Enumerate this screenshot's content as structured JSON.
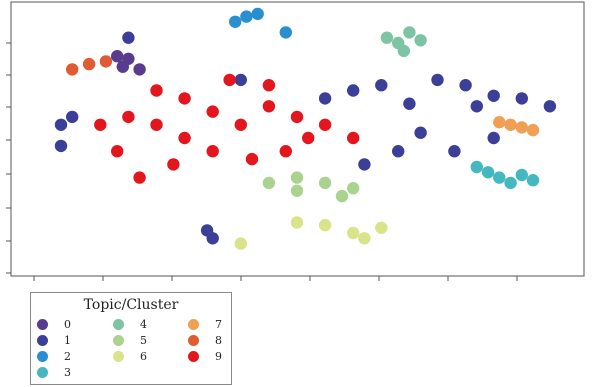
{
  "chart_data": {
    "type": "scatter",
    "title": "",
    "xlabel": "",
    "ylabel": "",
    "grid": false,
    "legend_position": "bottom-left, below plot",
    "legend_title": "Topic/Cluster",
    "colors": {
      "0": "#5a3c8f",
      "1": "#3b3f97",
      "2": "#2a8fd0",
      "3": "#45b7c1",
      "4": "#7cc4a4",
      "5": "#a9d38e",
      "6": "#d9e48a",
      "7": "#f0a055",
      "8": "#e05a34",
      "9": "#e3161e"
    },
    "clusters": [
      {
        "name": "0",
        "points": [
          [
            0.19,
            0.23
          ],
          [
            0.22,
            0.24
          ],
          [
            0.2,
            0.2
          ],
          [
            0.18,
            0.19
          ]
        ]
      },
      {
        "name": "1",
        "points": [
          [
            0.08,
            0.45
          ],
          [
            0.1,
            0.42
          ],
          [
            0.08,
            0.53
          ],
          [
            0.2,
            0.12
          ],
          [
            0.4,
            0.28
          ],
          [
            0.55,
            0.35
          ],
          [
            0.6,
            0.32
          ],
          [
            0.65,
            0.3
          ],
          [
            0.7,
            0.37
          ],
          [
            0.75,
            0.28
          ],
          [
            0.8,
            0.3
          ],
          [
            0.82,
            0.38
          ],
          [
            0.85,
            0.34
          ],
          [
            0.9,
            0.35
          ],
          [
            0.95,
            0.38
          ],
          [
            0.72,
            0.48
          ],
          [
            0.68,
            0.55
          ],
          [
            0.62,
            0.6
          ],
          [
            0.78,
            0.55
          ],
          [
            0.85,
            0.5
          ],
          [
            0.35,
            0.88
          ],
          [
            0.34,
            0.85
          ]
        ]
      },
      {
        "name": "2",
        "points": [
          [
            0.41,
            0.04
          ],
          [
            0.43,
            0.03
          ],
          [
            0.39,
            0.06
          ],
          [
            0.48,
            0.1
          ]
        ]
      },
      {
        "name": "3",
        "points": [
          [
            0.84,
            0.63
          ],
          [
            0.86,
            0.65
          ],
          [
            0.88,
            0.67
          ],
          [
            0.9,
            0.64
          ],
          [
            0.92,
            0.66
          ],
          [
            0.82,
            0.61
          ]
        ]
      },
      {
        "name": "4",
        "points": [
          [
            0.66,
            0.12
          ],
          [
            0.68,
            0.14
          ],
          [
            0.7,
            0.1
          ],
          [
            0.72,
            0.13
          ],
          [
            0.69,
            0.17
          ]
        ]
      },
      {
        "name": "5",
        "points": [
          [
            0.45,
            0.67
          ],
          [
            0.5,
            0.65
          ],
          [
            0.55,
            0.67
          ],
          [
            0.6,
            0.69
          ],
          [
            0.58,
            0.72
          ],
          [
            0.5,
            0.7
          ]
        ]
      },
      {
        "name": "6",
        "points": [
          [
            0.55,
            0.83
          ],
          [
            0.6,
            0.86
          ],
          [
            0.62,
            0.88
          ],
          [
            0.65,
            0.84
          ],
          [
            0.5,
            0.82
          ],
          [
            0.4,
            0.9
          ]
        ]
      },
      {
        "name": "7",
        "points": [
          [
            0.88,
            0.45
          ],
          [
            0.9,
            0.46
          ],
          [
            0.92,
            0.47
          ],
          [
            0.86,
            0.44
          ]
        ]
      },
      {
        "name": "8",
        "points": [
          [
            0.1,
            0.24
          ],
          [
            0.13,
            0.22
          ],
          [
            0.16,
            0.21
          ]
        ]
      },
      {
        "name": "9",
        "points": [
          [
            0.4,
            0.45
          ],
          [
            0.35,
            0.4
          ],
          [
            0.45,
            0.38
          ],
          [
            0.5,
            0.42
          ],
          [
            0.3,
            0.5
          ],
          [
            0.25,
            0.45
          ],
          [
            0.2,
            0.42
          ],
          [
            0.15,
            0.45
          ],
          [
            0.18,
            0.55
          ],
          [
            0.22,
            0.65
          ],
          [
            0.28,
            0.6
          ],
          [
            0.35,
            0.55
          ],
          [
            0.42,
            0.58
          ],
          [
            0.48,
            0.55
          ],
          [
            0.52,
            0.5
          ],
          [
            0.55,
            0.45
          ],
          [
            0.6,
            0.5
          ],
          [
            0.45,
            0.3
          ],
          [
            0.38,
            0.28
          ],
          [
            0.3,
            0.35
          ],
          [
            0.25,
            0.32
          ]
        ]
      }
    ]
  }
}
